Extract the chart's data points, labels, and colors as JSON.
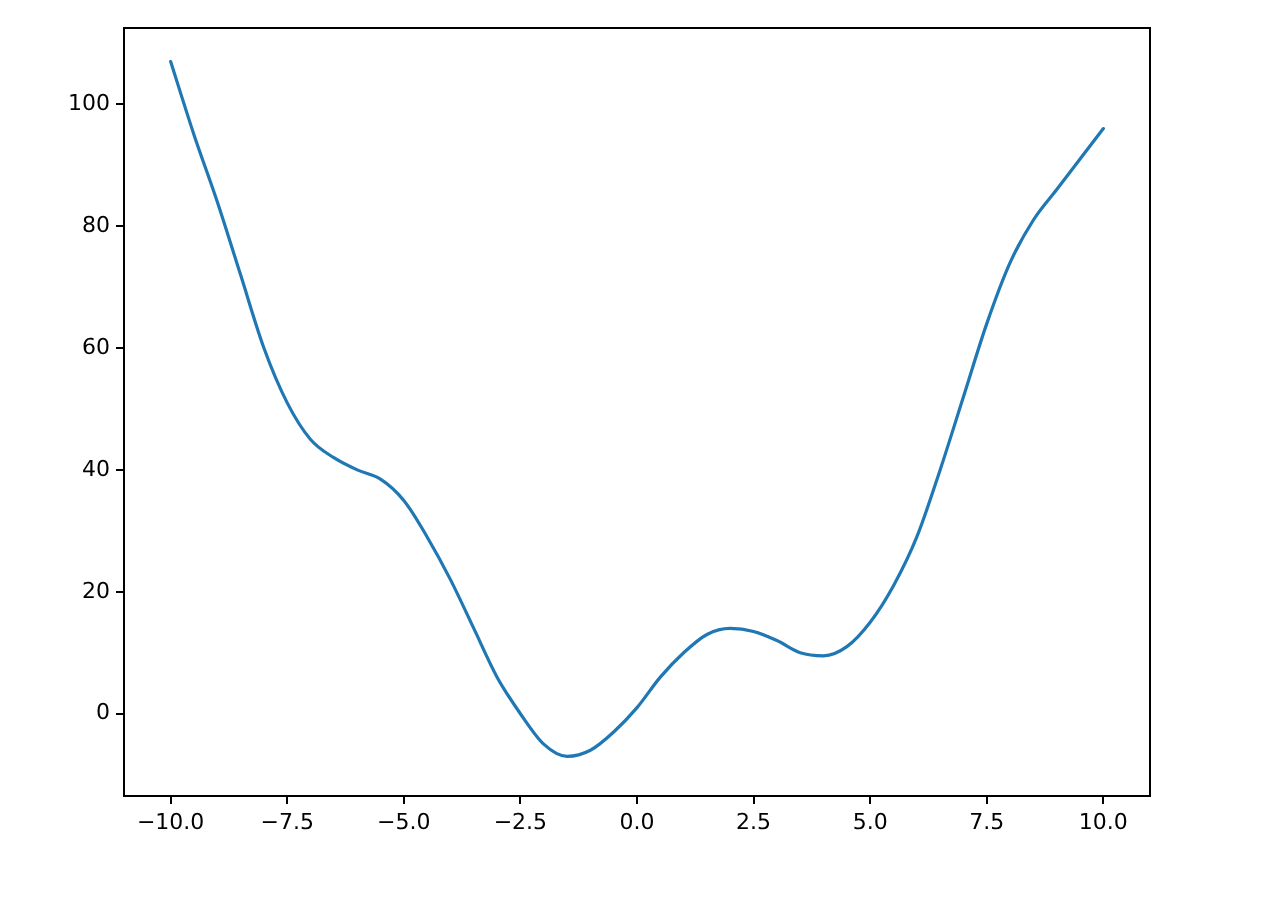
{
  "chart_data": {
    "type": "line",
    "x": [
      -10,
      -9.5,
      -9,
      -8.5,
      -8,
      -7.5,
      -7,
      -6.5,
      -6,
      -5.5,
      -5,
      -4.5,
      -4,
      -3.5,
      -3,
      -2.5,
      -2,
      -1.5,
      -1,
      -0.5,
      0,
      0.5,
      1,
      1.5,
      2,
      2.5,
      3,
      3.5,
      4,
      4.5,
      5,
      5.5,
      6,
      6.5,
      7,
      7.5,
      8,
      8.5,
      9,
      9.5,
      10
    ],
    "series": [
      {
        "color": "#1f77b4",
        "values": [
          107,
          95,
          84,
          72,
          60,
          51,
          45,
          42,
          40,
          38.5,
          35,
          29,
          22,
          14,
          6,
          0,
          -5,
          -7,
          -6,
          -3,
          1,
          6,
          10,
          13,
          14,
          13.5,
          12,
          10,
          9.5,
          11,
          15,
          21,
          29,
          40,
          52,
          64,
          74,
          81,
          86,
          91,
          96
        ]
      }
    ],
    "xlim": [
      -11,
      11
    ],
    "ylim": [
      -13.5,
      112.5
    ],
    "xticks": [
      {
        "value": -10,
        "label": "−10.0"
      },
      {
        "value": -7.5,
        "label": "−7.5"
      },
      {
        "value": -5,
        "label": "−5.0"
      },
      {
        "value": -2.5,
        "label": "−2.5"
      },
      {
        "value": 0,
        "label": "0.0"
      },
      {
        "value": 2.5,
        "label": "2.5"
      },
      {
        "value": 5,
        "label": "5.0"
      },
      {
        "value": 7.5,
        "label": "7.5"
      },
      {
        "value": 10,
        "label": "10.0"
      }
    ],
    "yticks": [
      0,
      20,
      40,
      60,
      80,
      100
    ],
    "legend": false,
    "grid": false,
    "marker": "none",
    "line_style": "solid"
  }
}
